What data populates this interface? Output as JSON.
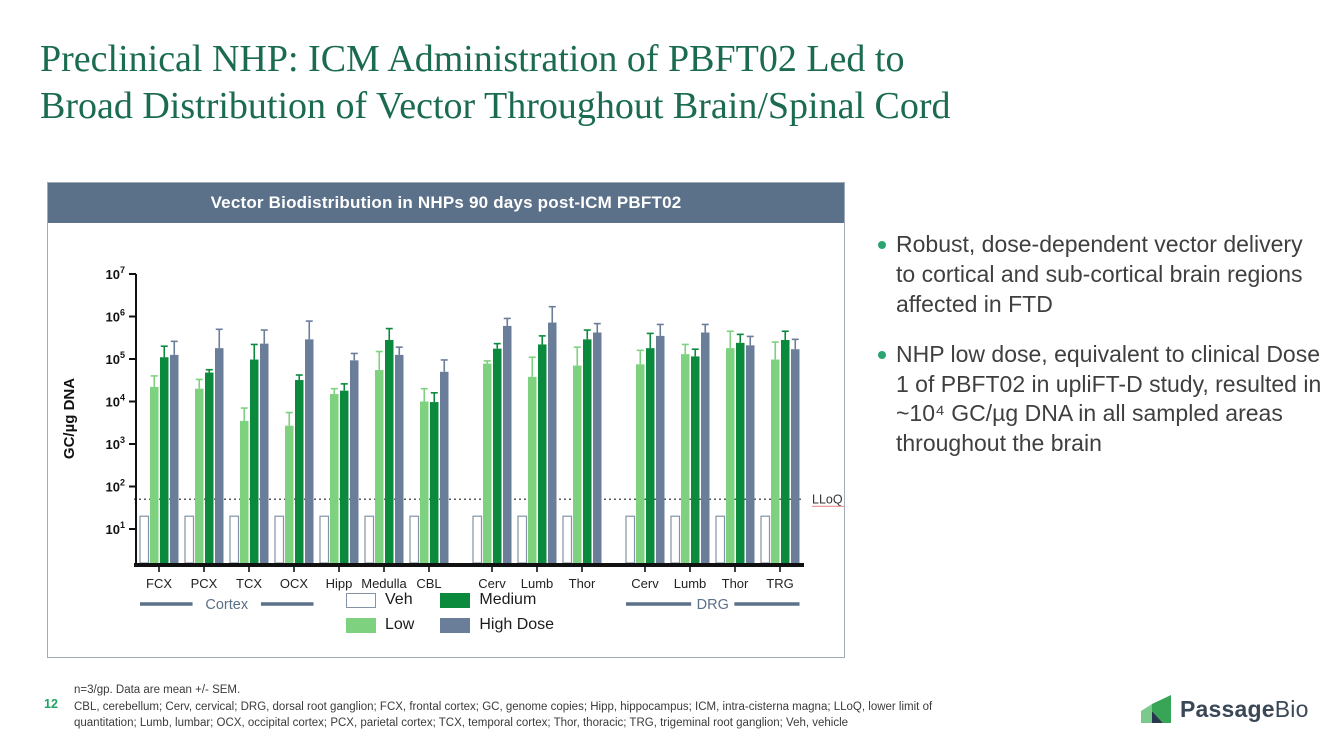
{
  "slide": {
    "title_line1": "Preclinical NHP: ICM Administration of PBFT02 Led to",
    "title_line2": "Broad Distribution of Vector Throughout Brain/Spinal Cord"
  },
  "bullets": [
    {
      "text": "Robust, dose-dependent vector delivery to cortical and sub-cortical brain regions affected in FTD"
    },
    {
      "text": "NHP low dose, equivalent to clinical Dose 1 of PBFT02 in upliFT-D study, resulted in ~10⁴ GC/µg DNA in all sampled areas throughout the brain"
    }
  ],
  "footer": {
    "note": "n=3/gp. Data are mean +/- SEM.",
    "abbrev_line1": "CBL, cerebellum; Cerv, cervical; DRG, dorsal root ganglion; FCX, frontal cortex; GC, genome copies; Hipp, hippocampus; ICM, intra-cisterna magna; LLoQ, lower limit of",
    "abbrev_line2": "quantitation; Lumb, lumbar; OCX, occipital cortex; PCX, parietal cortex; TCX, temporal cortex; Thor, thoracic; TRG, trigeminal root ganglion; Veh, vehicle",
    "page_number": "12"
  },
  "logo": {
    "bold": "Passage",
    "light": "Bio"
  },
  "chart_data": {
    "type": "bar",
    "title": "Vector Biodistribution in NHPs 90 days post-ICM PBFT02",
    "ylabel": "GC/µg DNA",
    "yscale": "log",
    "ylim_exponents": [
      0.2,
      7
    ],
    "ytick_exponents": [
      1,
      2,
      3,
      4,
      5,
      6,
      7
    ],
    "grid": false,
    "legend_position": "bottom-center",
    "lloq": {
      "label": "LLoQ",
      "value": 50
    },
    "categories": [
      "FCX",
      "PCX",
      "TCX",
      "OCX",
      "Hipp",
      "Medulla",
      "CBL",
      "Cerv",
      "Lumb",
      "Thor",
      "Cerv",
      "Lumb",
      "Thor",
      "TRG"
    ],
    "sections": [
      {
        "label": "Cortex",
        "from": 0,
        "to": 3
      },
      {
        "label": "DRG",
        "from": 10,
        "to": 13
      }
    ],
    "series": [
      {
        "name": "Veh",
        "color": "#ffffff",
        "stroke": "#8494a4",
        "values": [
          20,
          20,
          20,
          20,
          20,
          20,
          20,
          20,
          20,
          20,
          20,
          20,
          20,
          20
        ]
      },
      {
        "name": "Low",
        "color": "#7ed17e",
        "values": [
          22000,
          20000,
          3500,
          2700,
          15000,
          55000,
          10000,
          78000,
          38000,
          70000,
          75000,
          130000,
          180000,
          97000
        ],
        "upper": [
          40000,
          33000,
          7000,
          5500,
          20000,
          150000,
          20000,
          90000,
          110000,
          190000,
          160000,
          220000,
          450000,
          250000
        ]
      },
      {
        "name": "Medium",
        "color": "#0b8a3e",
        "values": [
          110000,
          48000,
          97000,
          32000,
          18000,
          280000,
          9700,
          175000,
          220000,
          290000,
          180000,
          115000,
          240000,
          280000
        ],
        "upper": [
          200000,
          56000,
          220000,
          42000,
          26000,
          520000,
          16000,
          230000,
          350000,
          480000,
          400000,
          170000,
          380000,
          450000
        ]
      },
      {
        "name": "High Dose",
        "color": "#6b7e99",
        "values": [
          125000,
          180000,
          230000,
          290000,
          93000,
          125000,
          50000,
          600000,
          720000,
          420000,
          350000,
          420000,
          210000,
          170000
        ],
        "upper": [
          260000,
          500000,
          480000,
          780000,
          135000,
          190000,
          95000,
          900000,
          1700000,
          680000,
          650000,
          650000,
          340000,
          290000
        ]
      }
    ]
  }
}
